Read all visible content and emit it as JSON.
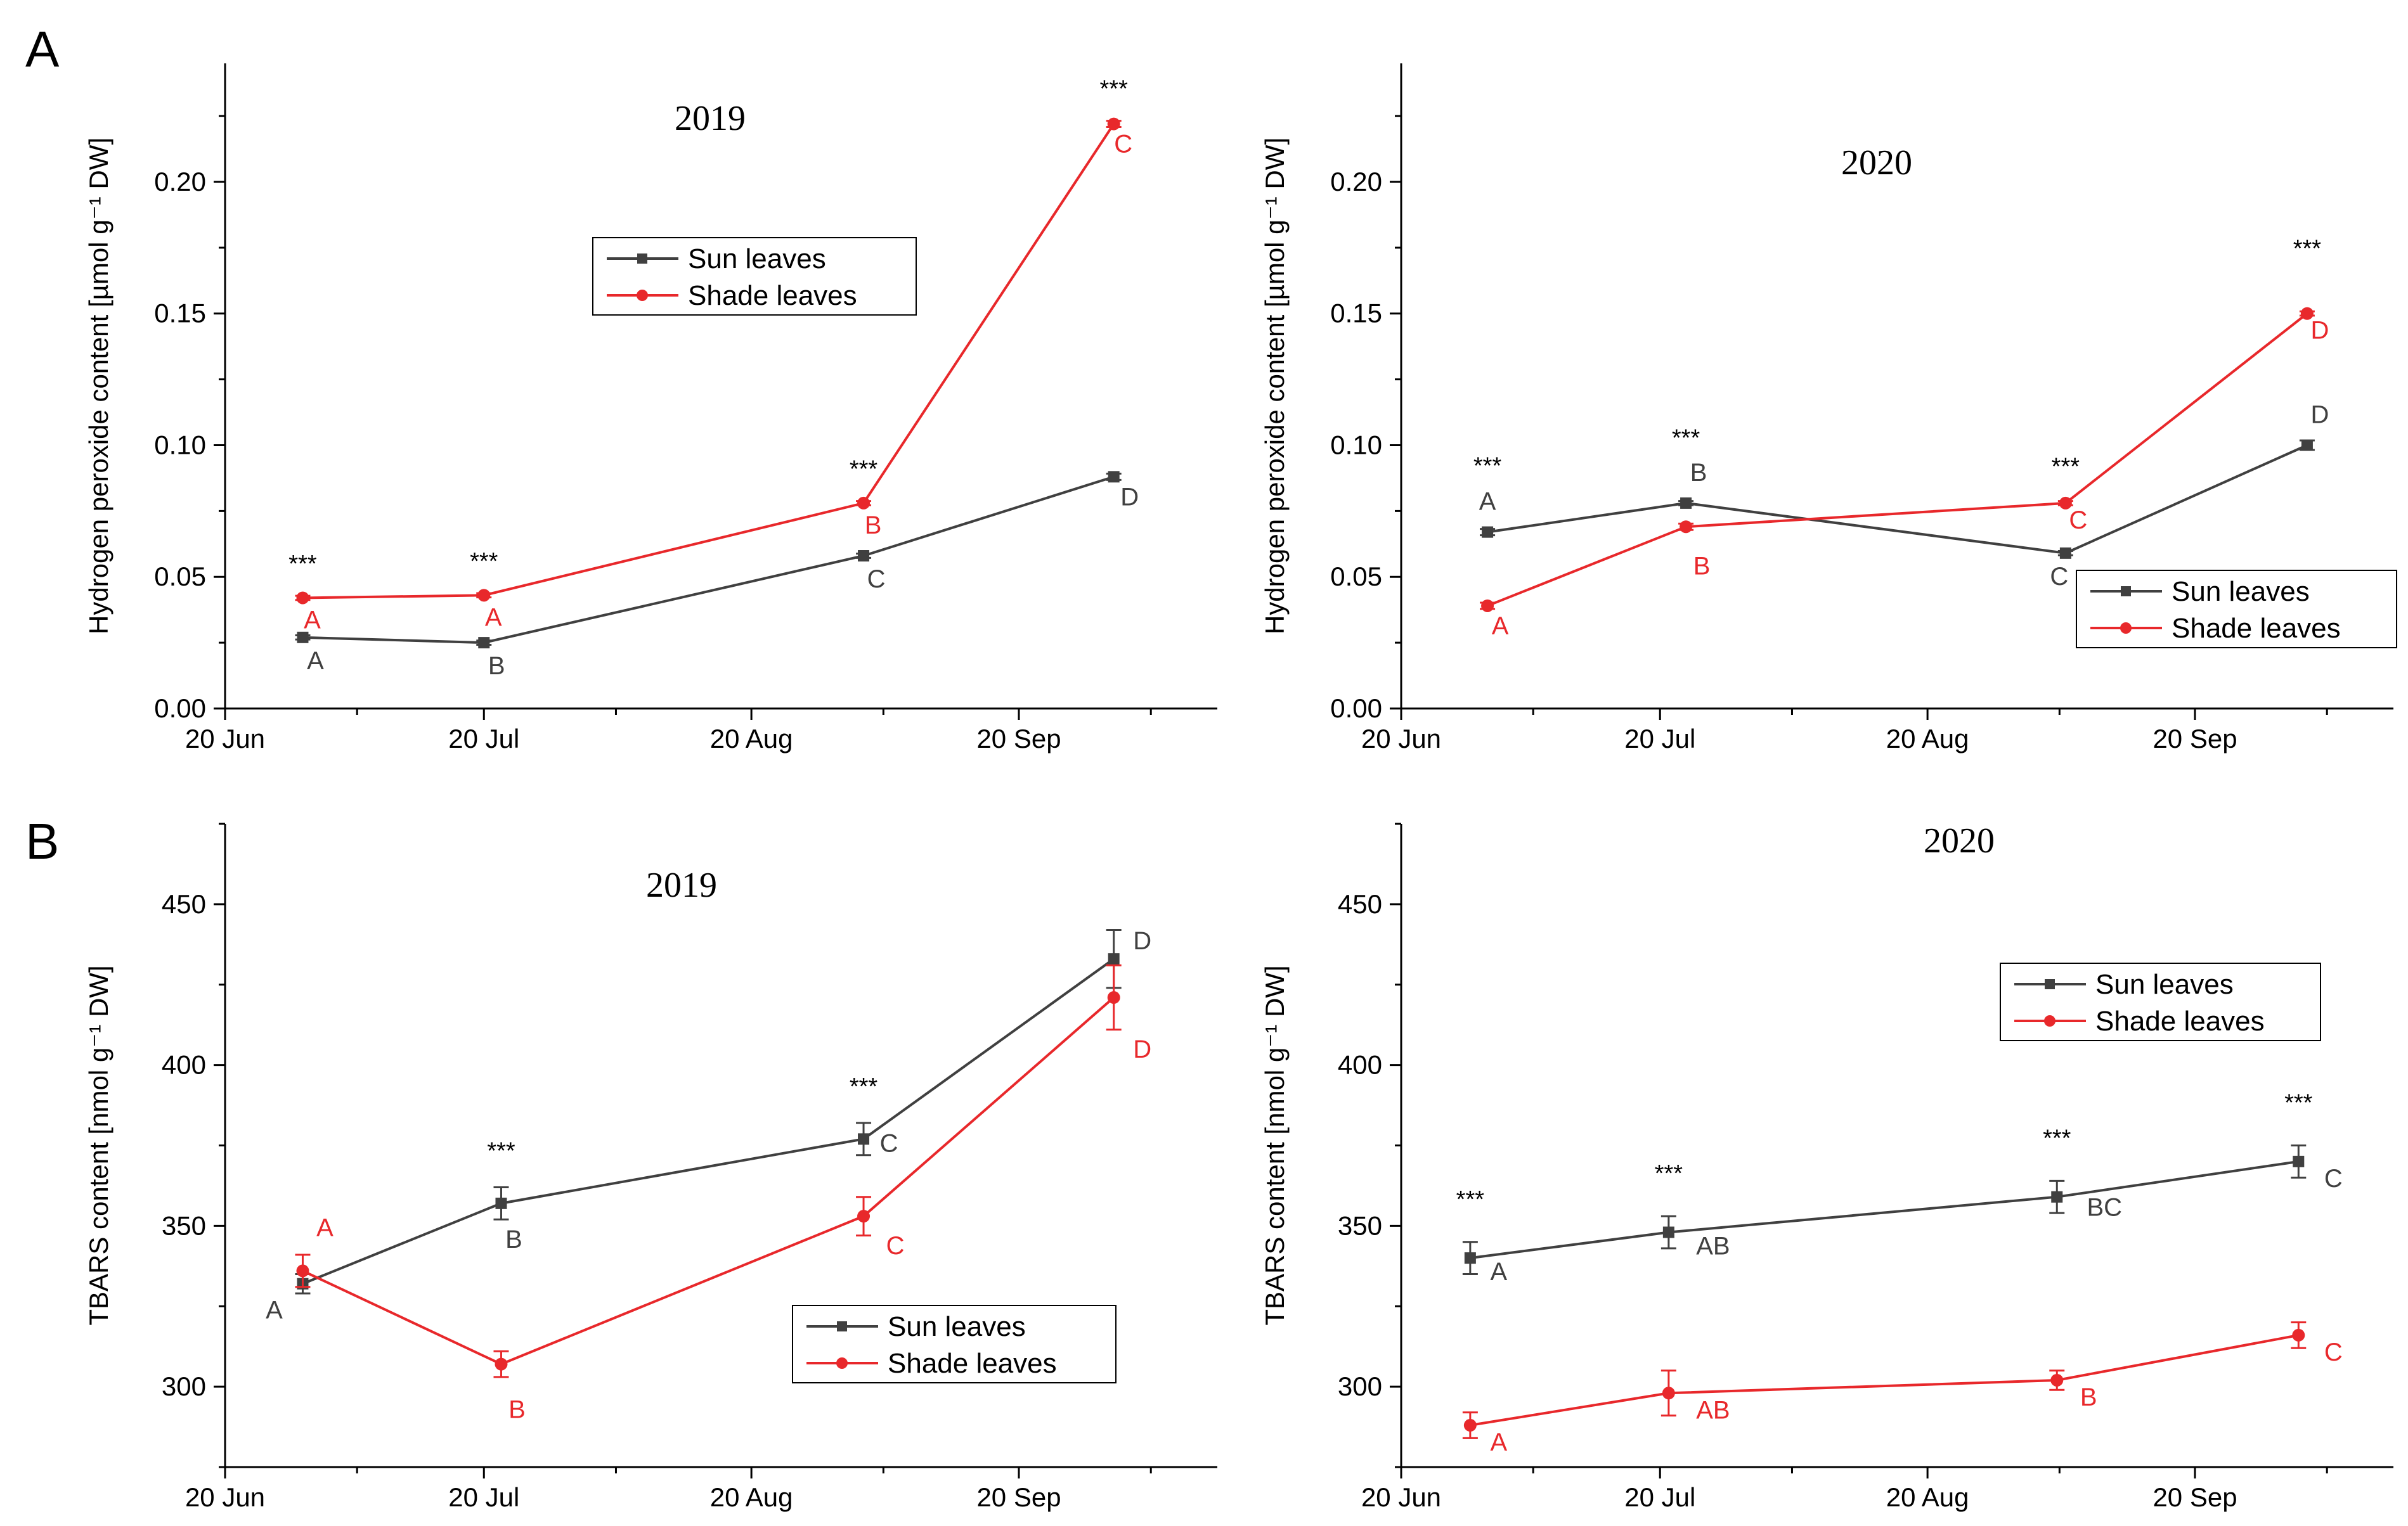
{
  "panel_letters": [
    "A",
    "B"
  ],
  "colors": {
    "sun": "#404040",
    "shade": "#e8282b",
    "axis": "#000000"
  },
  "chart_data": [
    {
      "id": "h2o2-2019",
      "type": "line",
      "title": "2019",
      "ylabel": "Hydrogen peroxide content [µmol g⁻¹ DW]",
      "xlabel": "",
      "x_ticks": [
        {
          "day": 0,
          "label": "20 Jun"
        },
        {
          "day": 30,
          "label": "20 Jul"
        },
        {
          "day": 61,
          "label": "20 Aug"
        },
        {
          "day": 92,
          "label": "20 Sep"
        }
      ],
      "x_range": [
        0,
        115
      ],
      "y_range": [
        0.0,
        0.245
      ],
      "y_ticks": [
        0.0,
        0.05,
        0.1,
        0.15,
        0.2
      ],
      "y_tick_labels": [
        "0.00",
        "0.05",
        "0.10",
        "0.15",
        "0.20"
      ],
      "legend": {
        "position": "upper-middle",
        "entries": [
          "Sun leaves",
          "Shade leaves"
        ]
      },
      "series": [
        {
          "name": "Sun leaves",
          "x": [
            9,
            30,
            74,
            103
          ],
          "values": [
            0.027,
            0.025,
            0.058,
            0.088
          ],
          "errors": [
            0.0008,
            0.0008,
            0.0008,
            0.0012
          ],
          "letters": [
            "A",
            "B",
            "C",
            "D"
          ]
        },
        {
          "name": "Shade leaves",
          "x": [
            9,
            30,
            74,
            103
          ],
          "values": [
            0.042,
            0.043,
            0.078,
            0.222
          ],
          "errors": [
            0.0008,
            0.0008,
            0.0008,
            0.0012
          ],
          "letters": [
            "A",
            "A",
            "B",
            "C"
          ]
        }
      ],
      "stars": [
        "***",
        "***",
        "***",
        "***"
      ]
    },
    {
      "id": "h2o2-2020",
      "type": "line",
      "title": "2020",
      "ylabel": "Hydrogen peroxide content [µmol g⁻¹ DW]",
      "xlabel": "",
      "x_ticks": [
        {
          "day": 0,
          "label": "20 Jun"
        },
        {
          "day": 30,
          "label": "20 Jul"
        },
        {
          "day": 61,
          "label": "20 Aug"
        },
        {
          "day": 92,
          "label": "20 Sep"
        }
      ],
      "x_range": [
        0,
        115
      ],
      "y_range": [
        0.0,
        0.245
      ],
      "y_ticks": [
        0.0,
        0.05,
        0.1,
        0.15,
        0.2
      ],
      "y_tick_labels": [
        "0.00",
        "0.05",
        "0.10",
        "0.15",
        "0.20"
      ],
      "legend": {
        "position": "lower-right",
        "entries": [
          "Sun leaves",
          "Shade leaves"
        ]
      },
      "series": [
        {
          "name": "Sun leaves",
          "x": [
            10,
            33,
            77,
            105
          ],
          "values": [
            0.067,
            0.078,
            0.059,
            0.1
          ],
          "errors": [
            0.0012,
            0.0008,
            0.0008,
            0.0018
          ],
          "letters": [
            "A",
            "B",
            "C",
            "D"
          ]
        },
        {
          "name": "Shade leaves",
          "x": [
            10,
            33,
            77,
            105
          ],
          "values": [
            0.039,
            0.069,
            0.078,
            0.15
          ],
          "errors": [
            0.0012,
            0.0012,
            0.0008,
            0.0008
          ],
          "letters": [
            "A",
            "B",
            "C",
            "D"
          ]
        }
      ],
      "stars": [
        "***",
        "***",
        "***",
        "***"
      ]
    },
    {
      "id": "tbars-2019",
      "type": "line",
      "title": "2019",
      "ylabel": "TBARS content [nmol g⁻¹ DW]",
      "xlabel": "",
      "x_ticks": [
        {
          "day": 0,
          "label": "20 Jun"
        },
        {
          "day": 30,
          "label": "20 Jul"
        },
        {
          "day": 61,
          "label": "20 Aug"
        },
        {
          "day": 92,
          "label": "20 Sep"
        }
      ],
      "x_range": [
        0,
        115
      ],
      "y_range": [
        275,
        475
      ],
      "y_ticks": [
        300,
        350,
        400,
        450
      ],
      "y_tick_labels": [
        "300",
        "350",
        "400",
        "450"
      ],
      "legend": {
        "position": "lower-right",
        "entries": [
          "Sun leaves",
          "Shade leaves"
        ]
      },
      "series": [
        {
          "name": "Sun leaves",
          "x": [
            9,
            32,
            74,
            103
          ],
          "values": [
            332,
            357,
            377,
            433
          ],
          "errors": [
            3,
            5,
            5,
            9
          ],
          "letters": [
            "A",
            "B",
            "C",
            "D"
          ]
        },
        {
          "name": "Shade leaves",
          "x": [
            9,
            32,
            74,
            103
          ],
          "values": [
            336,
            307,
            353,
            421
          ],
          "errors": [
            5,
            4,
            6,
            10
          ],
          "letters": [
            "A",
            "B",
            "C",
            "D"
          ]
        }
      ],
      "stars": [
        "",
        "***",
        "***",
        ""
      ]
    },
    {
      "id": "tbars-2020",
      "type": "line",
      "title": "2020",
      "ylabel": "TBARS content [nmol g⁻¹ DW]",
      "xlabel": "",
      "x_ticks": [
        {
          "day": 0,
          "label": "20 Jun"
        },
        {
          "day": 30,
          "label": "20 Jul"
        },
        {
          "day": 61,
          "label": "20 Aug"
        },
        {
          "day": 92,
          "label": "20 Sep"
        }
      ],
      "x_range": [
        0,
        115
      ],
      "y_range": [
        275,
        475
      ],
      "y_ticks": [
        300,
        350,
        400,
        450
      ],
      "y_tick_labels": [
        "300",
        "350",
        "400",
        "450"
      ],
      "legend": {
        "position": "upper-right",
        "entries": [
          "Sun leaves",
          "Shade leaves"
        ]
      },
      "series": [
        {
          "name": "Sun leaves",
          "x": [
            8,
            31,
            76,
            104
          ],
          "values": [
            340,
            348,
            359,
            370
          ],
          "errors": [
            5,
            5,
            5,
            5
          ],
          "letters": [
            "A",
            "AB",
            "BC",
            "C"
          ]
        },
        {
          "name": "Shade leaves",
          "x": [
            8,
            31,
            76,
            104
          ],
          "values": [
            288,
            298,
            302,
            316
          ],
          "errors": [
            4,
            7,
            3,
            4
          ],
          "letters": [
            "A",
            "AB",
            "B",
            "C"
          ]
        }
      ],
      "stars": [
        "***",
        "***",
        "***",
        "***"
      ]
    }
  ]
}
